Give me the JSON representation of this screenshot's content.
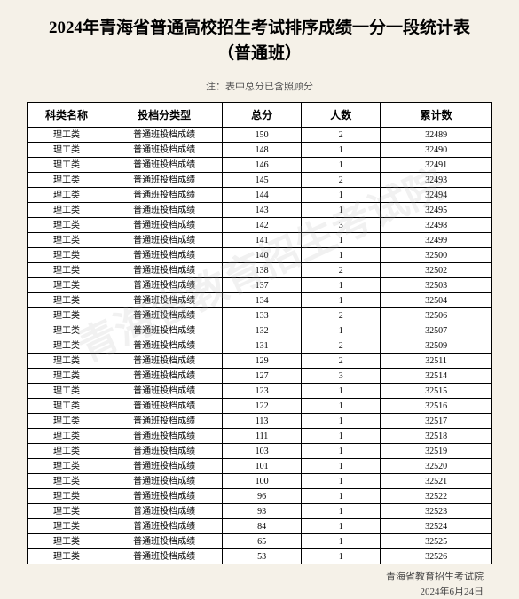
{
  "title_line1": "2024年青海省普通高校招生考试排序成绩一分一段统计表",
  "title_line2": "（普通班）",
  "note": "注：表中总分已含照顾分",
  "watermark": "青海省教育招生考试院",
  "columns": [
    "科类名称",
    "投档分类型",
    "总分",
    "人数",
    "累计数"
  ],
  "subject_label": "理工类",
  "type_label": "普通班投档成绩",
  "rows": [
    {
      "score": "150",
      "count": "2",
      "cumulative": "32489"
    },
    {
      "score": "148",
      "count": "1",
      "cumulative": "32490"
    },
    {
      "score": "146",
      "count": "1",
      "cumulative": "32491"
    },
    {
      "score": "145",
      "count": "2",
      "cumulative": "32493"
    },
    {
      "score": "144",
      "count": "1",
      "cumulative": "32494"
    },
    {
      "score": "143",
      "count": "1",
      "cumulative": "32495"
    },
    {
      "score": "142",
      "count": "3",
      "cumulative": "32498"
    },
    {
      "score": "141",
      "count": "1",
      "cumulative": "32499"
    },
    {
      "score": "140",
      "count": "1",
      "cumulative": "32500"
    },
    {
      "score": "138",
      "count": "2",
      "cumulative": "32502"
    },
    {
      "score": "137",
      "count": "1",
      "cumulative": "32503"
    },
    {
      "score": "134",
      "count": "1",
      "cumulative": "32504"
    },
    {
      "score": "133",
      "count": "2",
      "cumulative": "32506"
    },
    {
      "score": "132",
      "count": "1",
      "cumulative": "32507"
    },
    {
      "score": "131",
      "count": "2",
      "cumulative": "32509"
    },
    {
      "score": "129",
      "count": "2",
      "cumulative": "32511"
    },
    {
      "score": "127",
      "count": "3",
      "cumulative": "32514"
    },
    {
      "score": "123",
      "count": "1",
      "cumulative": "32515"
    },
    {
      "score": "122",
      "count": "1",
      "cumulative": "32516"
    },
    {
      "score": "113",
      "count": "1",
      "cumulative": "32517"
    },
    {
      "score": "111",
      "count": "1",
      "cumulative": "32518"
    },
    {
      "score": "103",
      "count": "1",
      "cumulative": "32519"
    },
    {
      "score": "101",
      "count": "1",
      "cumulative": "32520"
    },
    {
      "score": "100",
      "count": "1",
      "cumulative": "32521"
    },
    {
      "score": "96",
      "count": "1",
      "cumulative": "32522"
    },
    {
      "score": "93",
      "count": "1",
      "cumulative": "32523"
    },
    {
      "score": "84",
      "count": "1",
      "cumulative": "32524"
    },
    {
      "score": "65",
      "count": "1",
      "cumulative": "32525"
    },
    {
      "score": "53",
      "count": "1",
      "cumulative": "32526"
    }
  ],
  "footer_org": "青海省教育招生考试院",
  "footer_date": "2024年6月24日",
  "styling": {
    "background_color": "#f5f1e8",
    "table_border_color": "#000000",
    "header_border_width": 1.5,
    "cell_border_width": 1,
    "title_fontsize": 19,
    "header_fontsize": 12,
    "cell_fontsize": 10,
    "note_fontsize": 11,
    "footer_fontsize": 11,
    "watermark_color": "rgba(180,180,180,0.18)",
    "watermark_rotation": -25
  }
}
